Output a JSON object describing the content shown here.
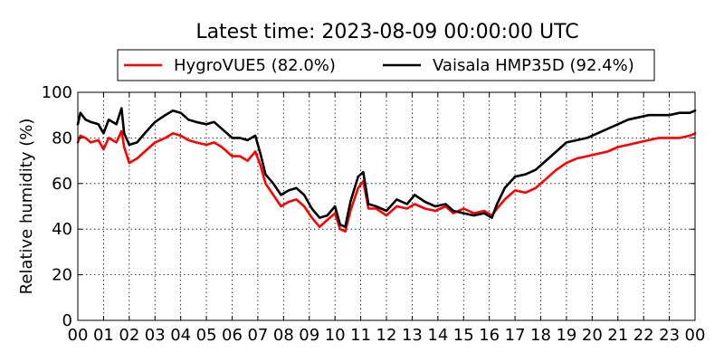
{
  "chart_data": {
    "type": "line",
    "title": "Latest time: 2023-08-09 00:00:00 UTC",
    "xlabel": "",
    "ylabel": "Relative humidity (%)",
    "xlim": [
      0,
      24
    ],
    "ylim": [
      0,
      100
    ],
    "x_ticks": [
      "00",
      "01",
      "02",
      "03",
      "04",
      "05",
      "06",
      "07",
      "08",
      "09",
      "10",
      "11",
      "12",
      "13",
      "14",
      "15",
      "16",
      "17",
      "18",
      "19",
      "20",
      "21",
      "22",
      "23",
      "00"
    ],
    "y_ticks": [
      0,
      20,
      40,
      60,
      80,
      100
    ],
    "grid": true,
    "legend_position": "top-center",
    "series": [
      {
        "name": "HygroVUE5 (82.0%)",
        "color": "#ff0000",
        "x": [
          0,
          0.1,
          0.3,
          0.5,
          0.8,
          1.0,
          1.2,
          1.5,
          1.7,
          1.8,
          2.0,
          2.3,
          2.6,
          3.0,
          3.4,
          3.7,
          4.0,
          4.3,
          4.6,
          5.0,
          5.3,
          5.6,
          6.0,
          6.3,
          6.6,
          6.9,
          7.1,
          7.3,
          7.6,
          7.9,
          8.2,
          8.5,
          8.8,
          9.1,
          9.4,
          9.7,
          10.0,
          10.2,
          10.4,
          10.6,
          10.9,
          11.1,
          11.3,
          11.6,
          12.0,
          12.4,
          12.8,
          13.1,
          13.5,
          13.9,
          14.3,
          14.6,
          15.0,
          15.4,
          15.8,
          16.1,
          16.3,
          16.6,
          17.0,
          17.4,
          17.8,
          18.2,
          18.6,
          19.0,
          19.4,
          19.8,
          20.2,
          20.6,
          21.0,
          21.4,
          21.8,
          22.2,
          22.6,
          23.0,
          23.4,
          23.8,
          24.0
        ],
        "values": [
          78,
          81,
          80,
          78,
          79,
          75,
          80,
          78,
          83,
          76,
          69,
          71,
          74,
          78,
          80,
          82,
          81,
          79,
          78,
          77,
          78,
          76,
          72,
          72,
          70,
          74,
          68,
          60,
          55,
          50,
          52,
          53,
          50,
          45,
          41,
          44,
          47,
          40,
          39,
          48,
          58,
          61,
          49,
          49,
          46,
          50,
          49,
          51,
          49,
          48,
          50,
          47,
          49,
          47,
          48,
          46,
          49,
          53,
          57,
          56,
          58,
          62,
          66,
          69,
          71,
          72,
          73,
          74,
          76,
          77,
          78,
          79,
          80,
          80,
          80,
          81,
          82
        ]
      },
      {
        "name": "Vaisala HMP35D (92.4%)",
        "color": "#000000",
        "x": [
          0,
          0.1,
          0.3,
          0.5,
          0.8,
          1.0,
          1.2,
          1.5,
          1.7,
          1.8,
          2.0,
          2.3,
          2.6,
          3.0,
          3.4,
          3.7,
          4.0,
          4.3,
          4.6,
          5.0,
          5.3,
          5.6,
          6.0,
          6.3,
          6.6,
          6.9,
          7.1,
          7.3,
          7.6,
          7.9,
          8.2,
          8.5,
          8.8,
          9.1,
          9.4,
          9.7,
          10.0,
          10.2,
          10.4,
          10.6,
          10.9,
          11.1,
          11.3,
          11.6,
          12.0,
          12.4,
          12.8,
          13.1,
          13.5,
          13.9,
          14.3,
          14.6,
          15.0,
          15.4,
          15.8,
          16.1,
          16.3,
          16.6,
          17.0,
          17.4,
          17.8,
          18.2,
          18.6,
          19.0,
          19.4,
          19.8,
          20.2,
          20.6,
          21.0,
          21.4,
          21.8,
          22.2,
          22.6,
          23.0,
          23.4,
          23.8,
          24.0
        ],
        "values": [
          86,
          91,
          88,
          87,
          86,
          82,
          88,
          86,
          93,
          82,
          77,
          78,
          82,
          87,
          90,
          92,
          91,
          88,
          87,
          86,
          87,
          84,
          80,
          80,
          79,
          81,
          73,
          64,
          60,
          55,
          57,
          58,
          55,
          49,
          45,
          46,
          50,
          42,
          41,
          52,
          63,
          65,
          51,
          50,
          48,
          53,
          51,
          55,
          52,
          50,
          51,
          48,
          47,
          46,
          47,
          45,
          51,
          58,
          63,
          64,
          66,
          70,
          74,
          78,
          79,
          80,
          82,
          84,
          86,
          88,
          89,
          90,
          90,
          90,
          91,
          91,
          92
        ]
      }
    ]
  }
}
